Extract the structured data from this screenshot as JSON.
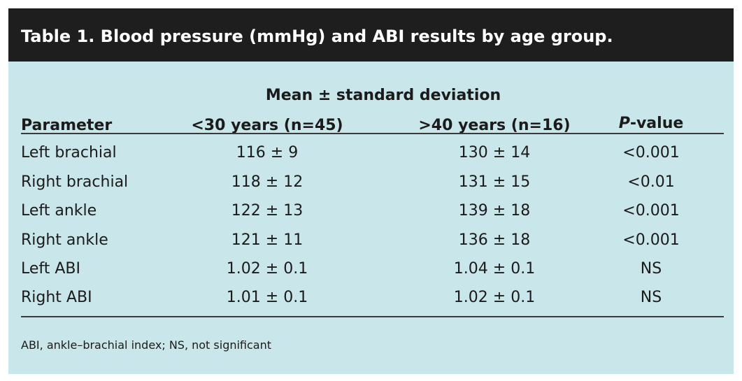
{
  "title": "Table 1. Blood pressure (mmHg) and ABI results by age group.",
  "header": {
    "spanning_label": "Mean ± standard deviation",
    "columns": [
      "Parameter",
      "<30 years (n=45)",
      ">40 years (n=16)",
      "P-value"
    ],
    "p_value_italic_part": "P",
    "p_value_rest": "-value"
  },
  "rows": [
    {
      "parameter": "Left brachial",
      "young": "116 ± 9",
      "old": "130 ± 14",
      "p": "<0.001"
    },
    {
      "parameter": "Right brachial",
      "young": "118 ± 12",
      "old": "131 ± 15",
      "p": "<0.01"
    },
    {
      "parameter": "Left ankle",
      "young": "122 ± 13",
      "old": "139 ± 18",
      "p": "<0.001"
    },
    {
      "parameter": "Right ankle",
      "young": "121 ± 11",
      "old": "136 ± 18",
      "p": "<0.001"
    },
    {
      "parameter": "Left ABI",
      "young": "1.02 ± 0.1",
      "old": "1.04 ± 0.1",
      "p": "NS"
    },
    {
      "parameter": "Right ABI",
      "young": "1.01 ± 0.1",
      "old": "1.02 ± 0.1",
      "p": "NS"
    }
  ],
  "footnote": "ABI, ankle–brachial index; NS, not significant",
  "colors": {
    "background": "#c9e6ea",
    "title_bar": "#1e1e1e",
    "title_text": "#ffffff"
  }
}
